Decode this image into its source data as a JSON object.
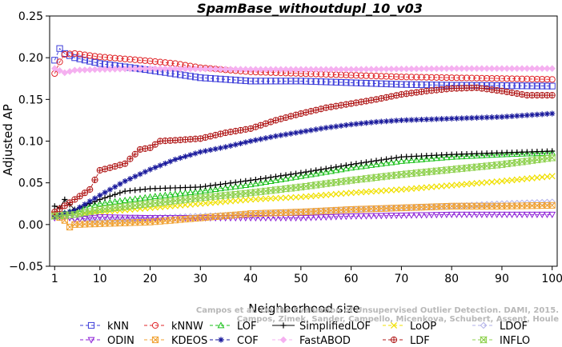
{
  "chart_data": {
    "type": "line",
    "title": "SpamBase_withoutdupl_10_v03",
    "xlabel": "Neighborhood size",
    "ylabel": "Adjusted AP",
    "xlim": [
      0,
      101
    ],
    "ylim": [
      -0.05,
      0.25
    ],
    "xticks": [
      1,
      10,
      20,
      30,
      40,
      50,
      60,
      70,
      80,
      90,
      100
    ],
    "yticks": [
      -0.05,
      0.0,
      0.05,
      0.1,
      0.15,
      0.2,
      0.25
    ],
    "ytick_labels": [
      "−0.05",
      "0.00",
      "0.05",
      "0.10",
      "0.15",
      "0.20",
      "0.25"
    ],
    "grid": false,
    "legend_position": "bottom",
    "watermark_lines": [
      "Campos et al. On the Evaluation of Unsupervised Outlier Detection. DAMI, 2015.",
      "Campos, Zimek, Sander, Campello, Micenkova, Schubert, Assent, Houle"
    ],
    "series": [
      {
        "name": "kNN",
        "color": "#3b3bd9",
        "marker": "square",
        "dash": "4,3",
        "anchors": [
          [
            1,
            0.197
          ],
          [
            2,
            0.211
          ],
          [
            3,
            0.205
          ],
          [
            5,
            0.2
          ],
          [
            10,
            0.193
          ],
          [
            20,
            0.185
          ],
          [
            30,
            0.176
          ],
          [
            40,
            0.172
          ],
          [
            50,
            0.172
          ],
          [
            60,
            0.17
          ],
          [
            70,
            0.168
          ],
          [
            80,
            0.167
          ],
          [
            100,
            0.166
          ]
        ]
      },
      {
        "name": "kNNW",
        "color": "#e0262a",
        "marker": "circle",
        "dash": "4,3",
        "anchors": [
          [
            1,
            0.181
          ],
          [
            2,
            0.195
          ],
          [
            3,
            0.204
          ],
          [
            5,
            0.205
          ],
          [
            10,
            0.201
          ],
          [
            20,
            0.196
          ],
          [
            25,
            0.193
          ],
          [
            30,
            0.188
          ],
          [
            40,
            0.183
          ],
          [
            50,
            0.181
          ],
          [
            60,
            0.179
          ],
          [
            70,
            0.177
          ],
          [
            80,
            0.176
          ],
          [
            100,
            0.174
          ]
        ]
      },
      {
        "name": "LOF",
        "color": "#19c119",
        "marker": "triangle-up",
        "dash": "4,3",
        "anchors": [
          [
            1,
            0.01
          ],
          [
            5,
            0.017
          ],
          [
            10,
            0.025
          ],
          [
            20,
            0.033
          ],
          [
            30,
            0.04
          ],
          [
            40,
            0.048
          ],
          [
            50,
            0.058
          ],
          [
            60,
            0.068
          ],
          [
            70,
            0.076
          ],
          [
            80,
            0.081
          ],
          [
            90,
            0.084
          ],
          [
            100,
            0.086
          ]
        ]
      },
      {
        "name": "SimplifiedLOF",
        "color": "#000000",
        "marker": "plus",
        "dash": "",
        "anchors": [
          [
            1,
            0.022
          ],
          [
            2,
            0.02
          ],
          [
            3,
            0.03
          ],
          [
            5,
            0.018
          ],
          [
            10,
            0.03
          ],
          [
            15,
            0.04
          ],
          [
            20,
            0.043
          ],
          [
            30,
            0.045
          ],
          [
            40,
            0.053
          ],
          [
            50,
            0.062
          ],
          [
            60,
            0.072
          ],
          [
            70,
            0.081
          ],
          [
            80,
            0.084
          ],
          [
            90,
            0.086
          ],
          [
            100,
            0.088
          ]
        ]
      },
      {
        "name": "LoOP",
        "color": "#f0e000",
        "marker": "x",
        "dash": "4,3",
        "anchors": [
          [
            1,
            0.012
          ],
          [
            5,
            0.012
          ],
          [
            10,
            0.015
          ],
          [
            20,
            0.02
          ],
          [
            30,
            0.025
          ],
          [
            40,
            0.03
          ],
          [
            50,
            0.033
          ],
          [
            60,
            0.038
          ],
          [
            70,
            0.042
          ],
          [
            80,
            0.047
          ],
          [
            90,
            0.052
          ],
          [
            100,
            0.058
          ]
        ]
      },
      {
        "name": "LDOF",
        "color": "#b0b0e8",
        "marker": "diamond",
        "dash": "4,3",
        "anchors": [
          [
            1,
            0.013
          ],
          [
            5,
            0.008
          ],
          [
            10,
            0.005
          ],
          [
            20,
            0.008
          ],
          [
            30,
            0.01
          ],
          [
            40,
            0.012
          ],
          [
            50,
            0.015
          ],
          [
            60,
            0.018
          ],
          [
            70,
            0.02
          ],
          [
            80,
            0.022
          ],
          [
            90,
            0.025
          ],
          [
            100,
            0.027
          ]
        ]
      },
      {
        "name": "ODIN",
        "color": "#8c1fd6",
        "marker": "triangle-down",
        "dash": "4,3",
        "anchors": [
          [
            1,
            0.008
          ],
          [
            3,
            0.01
          ],
          [
            5,
            0.006
          ],
          [
            10,
            0.009
          ],
          [
            20,
            0.008
          ],
          [
            30,
            0.008
          ],
          [
            40,
            0.008
          ],
          [
            50,
            0.008
          ],
          [
            60,
            0.01
          ],
          [
            70,
            0.011
          ],
          [
            80,
            0.012
          ],
          [
            90,
            0.012
          ],
          [
            100,
            0.012
          ]
        ]
      },
      {
        "name": "KDEOS",
        "color": "#f0a030",
        "marker": "square-x",
        "dash": "4,3",
        "anchors": [
          [
            1,
            0.012
          ],
          [
            3,
            0.005
          ],
          [
            4,
            -0.003
          ],
          [
            5,
            0.0
          ],
          [
            10,
            0.001
          ],
          [
            20,
            0.003
          ],
          [
            30,
            0.008
          ],
          [
            40,
            0.013
          ],
          [
            50,
            0.015
          ],
          [
            60,
            0.018
          ],
          [
            70,
            0.02
          ],
          [
            80,
            0.022
          ],
          [
            90,
            0.022
          ],
          [
            100,
            0.023
          ]
        ]
      },
      {
        "name": "COF",
        "color": "#1a1a9c",
        "marker": "asterisk",
        "dash": "4,3",
        "anchors": [
          [
            1,
            0.01
          ],
          [
            5,
            0.017
          ],
          [
            10,
            0.035
          ],
          [
            15,
            0.052
          ],
          [
            20,
            0.066
          ],
          [
            25,
            0.078
          ],
          [
            30,
            0.087
          ],
          [
            35,
            0.093
          ],
          [
            40,
            0.1
          ],
          [
            45,
            0.106
          ],
          [
            50,
            0.111
          ],
          [
            55,
            0.116
          ],
          [
            60,
            0.12
          ],
          [
            65,
            0.123
          ],
          [
            70,
            0.125
          ],
          [
            80,
            0.127
          ],
          [
            90,
            0.129
          ],
          [
            100,
            0.133
          ]
        ]
      },
      {
        "name": "FastABOD",
        "color": "#f5b0f0",
        "marker": "diamond-filled",
        "dash": "4,3",
        "anchors": [
          [
            1,
            0.187
          ],
          [
            3,
            0.182
          ],
          [
            5,
            0.185
          ],
          [
            10,
            0.186
          ],
          [
            20,
            0.187
          ],
          [
            40,
            0.186
          ],
          [
            60,
            0.186
          ],
          [
            80,
            0.187
          ],
          [
            100,
            0.187
          ]
        ]
      },
      {
        "name": "LDF",
        "color": "#b01818",
        "marker": "circle-plus",
        "dash": "4,3",
        "anchors": [
          [
            1,
            0.015
          ],
          [
            5,
            0.03
          ],
          [
            8,
            0.042
          ],
          [
            10,
            0.065
          ],
          [
            12,
            0.068
          ],
          [
            15,
            0.073
          ],
          [
            18,
            0.09
          ],
          [
            20,
            0.092
          ],
          [
            22,
            0.1
          ],
          [
            25,
            0.101
          ],
          [
            30,
            0.103
          ],
          [
            35,
            0.11
          ],
          [
            40,
            0.115
          ],
          [
            45,
            0.125
          ],
          [
            50,
            0.133
          ],
          [
            55,
            0.14
          ],
          [
            60,
            0.145
          ],
          [
            65,
            0.15
          ],
          [
            70,
            0.156
          ],
          [
            75,
            0.16
          ],
          [
            80,
            0.163
          ],
          [
            85,
            0.164
          ],
          [
            90,
            0.16
          ],
          [
            95,
            0.155
          ],
          [
            100,
            0.155
          ]
        ]
      },
      {
        "name": "INFLO",
        "color": "#8fd14f",
        "marker": "hourglass",
        "dash": "4,3",
        "anchors": [
          [
            1,
            0.01
          ],
          [
            5,
            0.012
          ],
          [
            10,
            0.018
          ],
          [
            20,
            0.025
          ],
          [
            30,
            0.032
          ],
          [
            40,
            0.038
          ],
          [
            50,
            0.045
          ],
          [
            60,
            0.053
          ],
          [
            70,
            0.06
          ],
          [
            80,
            0.066
          ],
          [
            90,
            0.072
          ],
          [
            100,
            0.08
          ]
        ]
      }
    ]
  }
}
